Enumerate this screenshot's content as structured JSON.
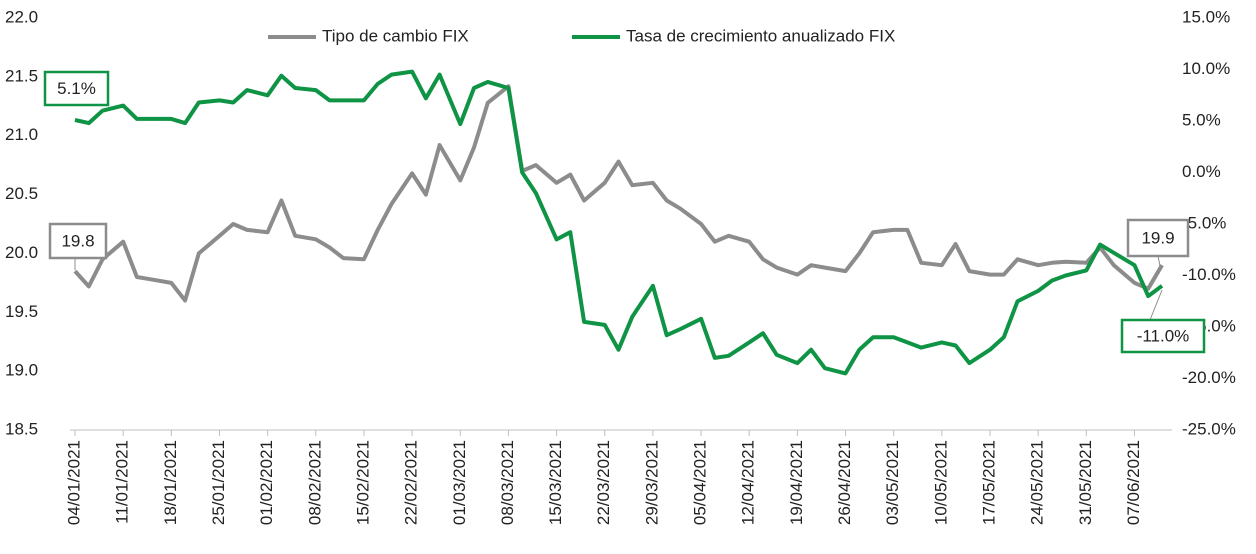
{
  "chart_data": {
    "type": "line",
    "x": [
      "04/01/2021",
      "06/01/2021",
      "08/01/2021",
      "11/01/2021",
      "13/01/2021",
      "15/01/2021",
      "18/01/2021",
      "20/01/2021",
      "22/01/2021",
      "25/01/2021",
      "27/01/2021",
      "29/01/2021",
      "01/02/2021",
      "03/02/2021",
      "05/02/2021",
      "08/02/2021",
      "10/02/2021",
      "12/02/2021",
      "15/02/2021",
      "17/02/2021",
      "19/02/2021",
      "22/02/2021",
      "24/02/2021",
      "26/02/2021",
      "01/03/2021",
      "03/03/2021",
      "05/03/2021",
      "08/03/2021",
      "10/03/2021",
      "12/03/2021",
      "15/03/2021",
      "17/03/2021",
      "19/03/2021",
      "22/03/2021",
      "24/03/2021",
      "26/03/2021",
      "29/03/2021",
      "31/03/2021",
      "02/04/2021",
      "05/04/2021",
      "07/04/2021",
      "09/04/2021",
      "12/04/2021",
      "14/04/2021",
      "16/04/2021",
      "19/04/2021",
      "21/04/2021",
      "23/04/2021",
      "26/04/2021",
      "28/04/2021",
      "30/04/2021",
      "03/05/2021",
      "05/05/2021",
      "07/05/2021",
      "10/05/2021",
      "12/05/2021",
      "14/05/2021",
      "17/05/2021",
      "19/05/2021",
      "21/05/2021",
      "24/05/2021",
      "26/05/2021",
      "28/05/2021",
      "31/05/2021",
      "02/06/2021",
      "04/06/2021",
      "07/06/2021",
      "09/06/2021",
      "11/06/2021"
    ],
    "xticks": [
      "04/01/2021",
      "11/01/2021",
      "18/01/2021",
      "25/01/2021",
      "01/02/2021",
      "08/02/2021",
      "15/02/2021",
      "22/02/2021",
      "01/03/2021",
      "08/03/2021",
      "15/03/2021",
      "22/03/2021",
      "29/03/2021",
      "05/04/2021",
      "12/04/2021",
      "19/04/2021",
      "26/04/2021",
      "03/05/2021",
      "10/05/2021",
      "17/05/2021",
      "24/05/2021",
      "31/05/2021",
      "07/06/2021"
    ],
    "series": [
      {
        "name": "Tipo de cambio FIX",
        "color": "#8c8c8c",
        "axis": "y",
        "values": [
          19.85,
          19.72,
          19.95,
          20.1,
          19.8,
          19.78,
          19.75,
          19.6,
          20.0,
          20.15,
          20.25,
          20.2,
          20.18,
          20.45,
          20.15,
          20.12,
          20.05,
          19.96,
          19.95,
          20.2,
          20.42,
          20.68,
          20.5,
          20.92,
          20.62,
          20.9,
          21.28,
          21.42,
          20.7,
          20.75,
          20.6,
          20.67,
          20.45,
          20.6,
          20.78,
          20.58,
          20.6,
          20.45,
          20.38,
          20.25,
          20.1,
          20.15,
          20.1,
          19.95,
          19.88,
          19.82,
          19.9,
          19.88,
          19.85,
          20.0,
          20.18,
          20.2,
          20.2,
          19.92,
          19.9,
          20.08,
          19.85,
          19.82,
          19.82,
          19.95,
          19.9,
          19.92,
          19.93,
          19.92,
          20.05,
          19.9,
          19.75,
          19.7,
          19.9
        ]
      },
      {
        "name": "Tasa de crecimiento anualizado FIX",
        "color": "#0e9444",
        "axis": "y2",
        "values": [
          5.1,
          4.8,
          6.0,
          6.5,
          5.2,
          5.2,
          5.2,
          4.8,
          6.8,
          7.0,
          6.8,
          8.0,
          7.5,
          9.4,
          8.2,
          8.0,
          7.0,
          7.0,
          7.0,
          8.6,
          9.5,
          9.8,
          7.2,
          9.5,
          4.7,
          8.2,
          8.8,
          8.2,
          0.0,
          -2.0,
          -6.5,
          -5.8,
          -14.5,
          -14.8,
          -17.2,
          -14.0,
          -11.0,
          -15.8,
          -15.2,
          -14.2,
          -18.0,
          -17.8,
          -16.5,
          -15.6,
          -17.7,
          -18.5,
          -17.2,
          -19.0,
          -19.5,
          -17.2,
          -16.0,
          -16.0,
          -16.5,
          -17.0,
          -16.5,
          -16.8,
          -18.5,
          -17.2,
          -16.0,
          -12.5,
          -11.5,
          -10.5,
          -10.0,
          -9.5,
          -7.0,
          -7.8,
          -9.0,
          -12.0,
          -11.0
        ]
      }
    ],
    "ylim": [
      18.5,
      22.0
    ],
    "yticks": [
      {
        "value": 18.5,
        "label": "18.5"
      },
      {
        "value": 19,
        "label": "19.0"
      },
      19.5,
      {
        "value": 20,
        "label": "20.0"
      },
      20.5,
      {
        "value": 21,
        "label": "21.0"
      },
      21.5,
      {
        "value": 22,
        "label": "22.0"
      }
    ],
    "y2lim": [
      -25,
      15
    ],
    "y2ticks": [
      {
        "value": -25,
        "label": "-25.0%"
      },
      {
        "value": -20,
        "label": "-20.0%"
      },
      {
        "value": -15,
        "label": "-15.0%"
      },
      {
        "value": -10,
        "label": "-10.0%"
      },
      {
        "value": -5,
        "label": "-5.0%"
      },
      {
        "value": 0,
        "label": "0.0%"
      },
      {
        "value": 5,
        "label": "5.0%"
      },
      {
        "value": 10,
        "label": "10.0%"
      },
      {
        "value": 15,
        "label": "15.0%"
      }
    ],
    "grid": false,
    "legend": "top",
    "annotations": [
      {
        "text": "5.1%",
        "color": "#0e9444"
      },
      {
        "text": "19.8",
        "color": "#8c8c8c"
      },
      {
        "text": "19.9",
        "color": "#8c8c8c"
      },
      {
        "text": "-11.0%",
        "color": "#0e9444"
      }
    ]
  }
}
